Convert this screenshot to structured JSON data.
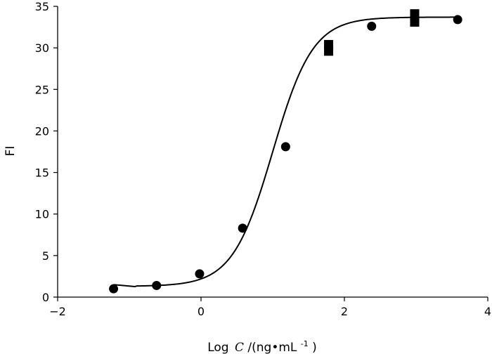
{
  "chart_data": {
    "type": "scatter",
    "title": "",
    "xlabel": {
      "prefix": "Log",
      "variable": "C",
      "suffix": "/(ng•mL",
      "superscript": "-1",
      "close": ")"
    },
    "ylabel": "FI",
    "xlim": [
      -2,
      4
    ],
    "ylim": [
      0,
      35
    ],
    "xticks": [
      -2,
      0,
      2,
      4
    ],
    "xtick_labels": [
      "−2",
      "0",
      "2",
      "4"
    ],
    "yticks": [
      0,
      5,
      10,
      15,
      20,
      25,
      30,
      35
    ],
    "ytick_labels": [
      "0",
      "5",
      "10",
      "15",
      "20",
      "25",
      "30",
      "35"
    ],
    "grid": false,
    "legend": "none",
    "colors": {
      "marker": "#000000",
      "curve": "#000000",
      "axis": "#000000"
    },
    "series": [
      {
        "marker": "circle",
        "x": [
          -1.22,
          -0.62,
          -0.02,
          0.58,
          1.18,
          1.78,
          2.38,
          2.98,
          3.58
        ],
        "y": [
          1.0,
          1.4,
          2.8,
          8.3,
          18.1,
          30.2,
          32.6,
          33.4,
          33.4
        ]
      },
      {
        "marker": "square",
        "x": [
          1.78,
          1.78,
          2.98,
          2.98
        ],
        "y": [
          30.4,
          29.6,
          34.1,
          33.1
        ]
      }
    ],
    "fit_curve": {
      "type": "sigmoid",
      "bottom": 1.3,
      "top": 33.7,
      "x50": 1.0,
      "hill": 1.55,
      "x_range": [
        -1.22,
        3.6
      ],
      "low_end_values": {
        "x": [
          -1.22,
          -0.9
        ],
        "y": [
          1.5,
          1.25
        ]
      }
    }
  }
}
